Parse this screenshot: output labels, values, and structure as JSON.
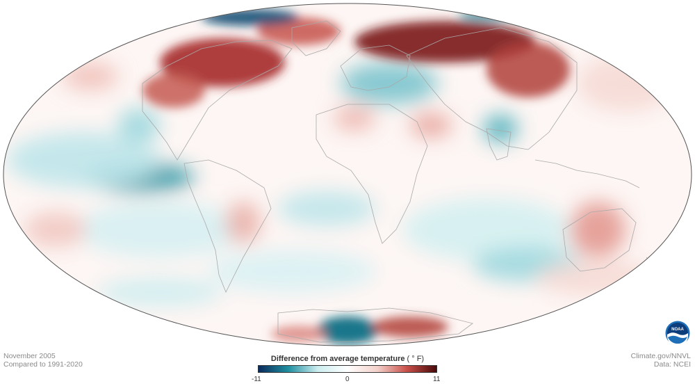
{
  "meta": {
    "date": "November 2005",
    "comparison": "Compared to 1991-2020"
  },
  "credits": {
    "source": "Climate.gov/NNVL",
    "data": "Data: NCEI"
  },
  "logo": {
    "text": "NOAA",
    "icon": "noaa-logo"
  },
  "legend": {
    "title": "Difference from average temperature",
    "unit": "( ° F)",
    "min_label": "-11",
    "mid_label": "0",
    "max_label": "11",
    "colors": [
      "#0b2a5c",
      "#1f8fa0",
      "#cdeef0",
      "#ffffff",
      "#f4d2cc",
      "#c9504a",
      "#4a0a0a"
    ]
  },
  "map": {
    "projection": "Mollweide",
    "colors": {
      "ocean_neutral": "#ffffff",
      "cool": "#4fb0bd",
      "cool_dark": "#0b2a5c",
      "warm": "#d9847a",
      "warm_dark": "#6b0f12",
      "borders": "#aaaaaa",
      "outline": "#555555"
    }
  }
}
